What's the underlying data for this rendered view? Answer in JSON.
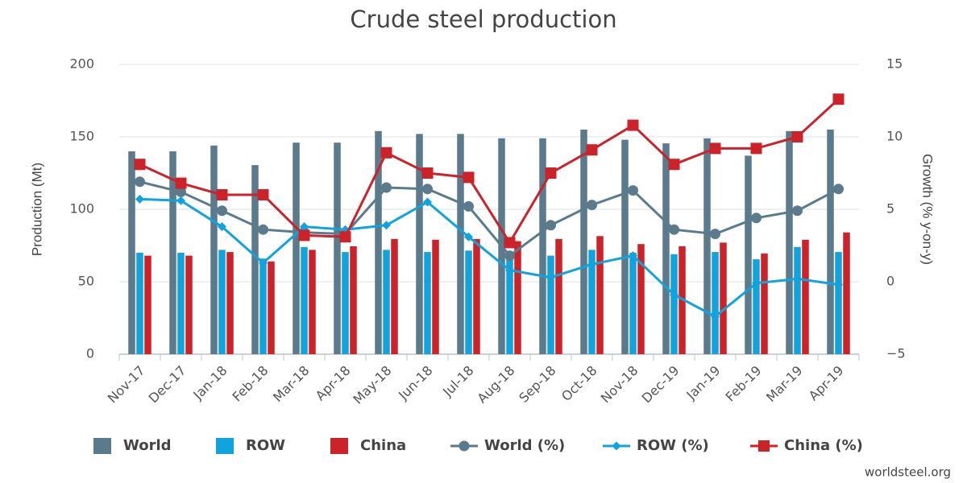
{
  "chart_data": {
    "type": "bar-line",
    "title": "Crude steel production",
    "y_label": "Production (Mt)",
    "y2_label": "Growth (% y-on-y)",
    "source": "worldsteel.org",
    "categories": [
      "Nov-17",
      "Dec-17",
      "Jan-18",
      "Feb-18",
      "Mar-18",
      "Apr-18",
      "May-18",
      "Jun-18",
      "Jul-18",
      "Aug-18",
      "Sep-18",
      "Oct-18",
      "Nov-18",
      "Dec-19",
      "Jan-19",
      "Feb-19",
      "Mar-19",
      "Apr-19"
    ],
    "ylim": [
      0,
      200
    ],
    "yticks": [
      0,
      50,
      100,
      150,
      200
    ],
    "y2lim": [
      -5,
      15
    ],
    "y2ticks": [
      {
        "value": -5,
        "label": "−5"
      },
      0,
      5,
      10,
      15
    ],
    "grid": true,
    "legend": "bottom",
    "series": [
      {
        "name": "World",
        "type": "bar",
        "axis": "y",
        "color": "#5b7b8d",
        "values": [
          140,
          140,
          144,
          130.5,
          146,
          146,
          154,
          152,
          152,
          149,
          149,
          155,
          148,
          145.5,
          149,
          137,
          154,
          155
        ]
      },
      {
        "name": "ROW",
        "type": "bar",
        "axis": "y",
        "color": "#10a3dd",
        "values": [
          70,
          70,
          72,
          66,
          74,
          70.5,
          72,
          70.5,
          71.5,
          70,
          68,
          72,
          70,
          69,
          70.5,
          65.5,
          74,
          70.5
        ]
      },
      {
        "name": "China",
        "type": "bar",
        "axis": "y",
        "color": "#cc2229",
        "values": [
          68,
          68,
          70.5,
          64,
          72,
          74.5,
          79.5,
          79,
          79.5,
          78,
          79.5,
          81.5,
          76,
          74.5,
          77,
          69.5,
          79,
          84
        ]
      },
      {
        "name": "World (%)",
        "type": "line",
        "axis": "y2",
        "color": "#5b7b8d",
        "marker": "circle",
        "values": [
          6.9,
          6.2,
          4.9,
          3.6,
          3.4,
          3.3,
          6.5,
          6.4,
          5.2,
          1.8,
          3.9,
          5.3,
          6.3,
          3.6,
          3.3,
          4.4,
          4.9,
          6.4
        ]
      },
      {
        "name": "ROW (%)",
        "type": "line",
        "axis": "y2",
        "color": "#10a3dd",
        "marker": "diamond",
        "values": [
          5.7,
          5.6,
          3.8,
          1.3,
          3.8,
          3.6,
          3.9,
          5.5,
          3.1,
          0.8,
          0.3,
          1.2,
          1.8,
          -0.9,
          -2.4,
          -0.1,
          0.2,
          -0.2
        ]
      },
      {
        "name": "China (%)",
        "type": "line",
        "axis": "y2",
        "color": "#cc2229",
        "marker": "square",
        "values": [
          8.1,
          6.8,
          6.0,
          6.0,
          3.2,
          3.1,
          8.9,
          7.5,
          7.2,
          2.7,
          7.5,
          9.1,
          10.8,
          8.1,
          9.2,
          9.2,
          10.0,
          12.6
        ]
      }
    ]
  }
}
